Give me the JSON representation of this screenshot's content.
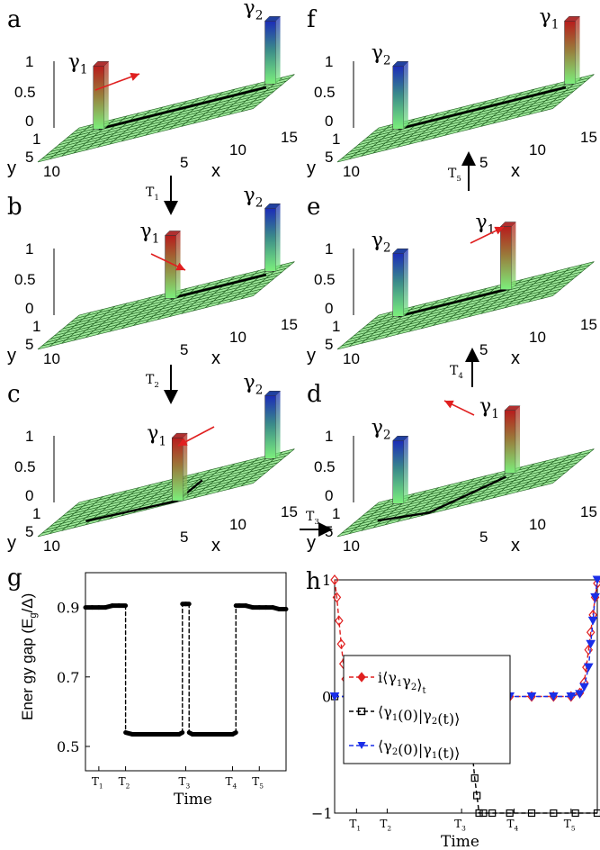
{
  "panels3d": [
    {
      "label": "a",
      "g1": "γ",
      "g1sub": "1",
      "g2": "γ",
      "g2sub": "2",
      "zticks": [
        "1",
        "0.5",
        "0"
      ],
      "yticks": [
        "1",
        "5",
        "10"
      ],
      "xticks": [
        "5",
        "10",
        "15"
      ],
      "ylab": "y",
      "xlab": "x"
    },
    {
      "label": "b",
      "g1": "γ",
      "g1sub": "1",
      "g2": "γ",
      "g2sub": "2",
      "zticks": [
        "1",
        "0.5",
        "0"
      ],
      "yticks": [
        "1",
        "5",
        "10"
      ],
      "xticks": [
        "5",
        "10",
        "15"
      ],
      "ylab": "y",
      "xlab": "x"
    },
    {
      "label": "c",
      "g1": "γ",
      "g1sub": "1",
      "g2": "γ",
      "g2sub": "2",
      "zticks": [
        "1",
        "0.5",
        "0"
      ],
      "yticks": [
        "1",
        "5",
        "10"
      ],
      "xticks": [
        "5",
        "10",
        "15"
      ],
      "ylab": "y",
      "xlab": "x"
    },
    {
      "label": "f",
      "g1": "γ",
      "g1sub": "1",
      "g2": "γ",
      "g2sub": "2",
      "zticks": [
        "1",
        "0.5",
        "0"
      ],
      "yticks": [
        "1",
        "5",
        "10"
      ],
      "xticks": [
        "5",
        "10",
        "15"
      ],
      "ylab": "y",
      "xlab": "x"
    },
    {
      "label": "e",
      "g1": "γ",
      "g1sub": "1",
      "g2": "γ",
      "g2sub": "2",
      "zticks": [
        "1",
        "0.5",
        "0"
      ],
      "yticks": [
        "1",
        "5",
        "10"
      ],
      "xticks": [
        "5",
        "10",
        "15"
      ],
      "ylab": "y",
      "xlab": "x"
    },
    {
      "label": "d",
      "g1": "γ",
      "g1sub": "1",
      "g2": "γ",
      "g2sub": "2",
      "zticks": [
        "1",
        "0.5",
        "0"
      ],
      "yticks": [
        "1",
        "5",
        "10"
      ],
      "xticks": [
        "5",
        "10",
        "15"
      ],
      "ylab": "y",
      "xlab": "x"
    }
  ],
  "steps": [
    {
      "t": "T",
      "sub": "1"
    },
    {
      "t": "T",
      "sub": "2"
    },
    {
      "t": "T",
      "sub": "3"
    },
    {
      "t": "T",
      "sub": "4"
    },
    {
      "t": "T",
      "sub": "5"
    }
  ],
  "colors": {
    "grid": "#9ee89a",
    "gridLine": "#1f5f1f",
    "red": "#e02020",
    "black": "#000000",
    "blue": "#1a2ee8",
    "barTop": "#b03030",
    "barTop2": "#2040a0"
  },
  "chart_data": [
    {
      "type": "line",
      "panel": "g",
      "ylabel": "Ener gy gap  (E",
      "ylabel_sub": "g",
      "ylabel_tail": "/Δ)",
      "xlabel": "Time",
      "yticks": [
        "0.9",
        "0.7",
        "0.5"
      ],
      "ylim": [
        0.43,
        1.0
      ],
      "xlim": [
        0,
        6
      ],
      "xtick_labels": [
        {
          "t": "T",
          "s": "1",
          "x": 0.4
        },
        {
          "t": "T",
          "s": "2",
          "x": 1.2
        },
        {
          "t": "T",
          "s": "3",
          "x": 3.0
        },
        {
          "t": "T",
          "s": "4",
          "x": 4.4
        },
        {
          "t": "T",
          "s": "5",
          "x": 5.2
        }
      ],
      "series": [
        {
          "values_x": [
            0,
            0.2,
            0.4,
            0.6,
            0.8,
            1.0,
            1.2,
            1.2,
            1.4,
            1.6,
            1.8,
            2.0,
            2.2,
            2.4,
            2.6,
            2.8,
            2.9,
            2.9,
            3.0,
            3.1,
            3.1,
            3.2,
            3.4,
            3.6,
            3.8,
            4.0,
            4.2,
            4.4,
            4.5,
            4.5,
            4.6,
            4.8,
            5.0,
            5.2,
            5.4,
            5.6,
            5.8,
            6.0
          ],
          "values_y": [
            0.9,
            0.9,
            0.9,
            0.9,
            0.905,
            0.905,
            0.905,
            0.54,
            0.535,
            0.535,
            0.535,
            0.535,
            0.535,
            0.535,
            0.535,
            0.535,
            0.54,
            0.91,
            0.91,
            0.91,
            0.54,
            0.535,
            0.535,
            0.535,
            0.535,
            0.535,
            0.535,
            0.535,
            0.54,
            0.905,
            0.905,
            0.905,
            0.9,
            0.9,
            0.9,
            0.9,
            0.895,
            0.895
          ]
        }
      ]
    },
    {
      "type": "line",
      "panel": "h",
      "xlabel": "Time",
      "yticks": [
        "1",
        "0",
        "−1"
      ],
      "ylim": [
        -1,
        1
      ],
      "xlim": [
        0,
        6
      ],
      "xtick_labels": [
        {
          "t": "T",
          "s": "1",
          "x": 0.5
        },
        {
          "t": "T",
          "s": "2",
          "x": 1.2
        },
        {
          "t": "T",
          "s": "3",
          "x": 2.9
        },
        {
          "t": "T",
          "s": "4",
          "x": 4.1
        },
        {
          "t": "T",
          "s": "5",
          "x": 5.4
        }
      ],
      "series": [
        {
          "name": "i⟨γ1γ2⟩t",
          "color": "#e02020",
          "marker": "diamond",
          "x": [
            0,
            0.05,
            0.1,
            0.15,
            0.2,
            0.25,
            0.3,
            0.4,
            0.6,
            1.0,
            1.5,
            2.0,
            2.5,
            3.0,
            3.5,
            4.0,
            4.5,
            5.0,
            5.4,
            5.6,
            5.7,
            5.75,
            5.8,
            5.85,
            5.9,
            5.95,
            6.0
          ],
          "y": [
            1,
            0.85,
            0.65,
            0.45,
            0.28,
            0.15,
            0.07,
            0.02,
            0.0,
            0,
            0,
            0,
            0,
            0,
            0,
            0,
            0,
            0,
            0,
            0.03,
            0.12,
            0.25,
            0.4,
            0.55,
            0.7,
            0.85,
            0.97
          ]
        },
        {
          "name": "⟨γ1(0)|γ2(t)⟩",
          "color": "#000000",
          "marker": "square",
          "x": [
            0,
            0.5,
            1.0,
            1.5,
            2.0,
            2.5,
            2.9,
            3.0,
            3.05,
            3.1,
            3.15,
            3.2,
            3.25,
            3.3,
            3.4,
            3.6,
            4.0,
            4.5,
            5.0,
            5.5,
            6.0
          ],
          "y": [
            0,
            0,
            0,
            0,
            0,
            0,
            0,
            -0.05,
            -0.15,
            -0.3,
            -0.5,
            -0.7,
            -0.85,
            -1,
            -1,
            -1,
            -1,
            -1,
            -1,
            -1,
            -1
          ]
        },
        {
          "name": "⟨γ2(0)|γ1(t)⟩",
          "color": "#1a2ee8",
          "marker": "triangle-down",
          "x": [
            0,
            0.5,
            1.0,
            1.5,
            2.0,
            2.5,
            3.0,
            3.5,
            4.0,
            4.5,
            5.0,
            5.4,
            5.6,
            5.7,
            5.8,
            5.85,
            5.9,
            5.95,
            6.0
          ],
          "y": [
            0,
            0,
            0,
            0,
            0,
            0,
            0,
            0,
            0,
            0,
            0,
            0,
            0.02,
            0.08,
            0.25,
            0.45,
            0.65,
            0.85,
            1
          ]
        }
      ]
    }
  ]
}
